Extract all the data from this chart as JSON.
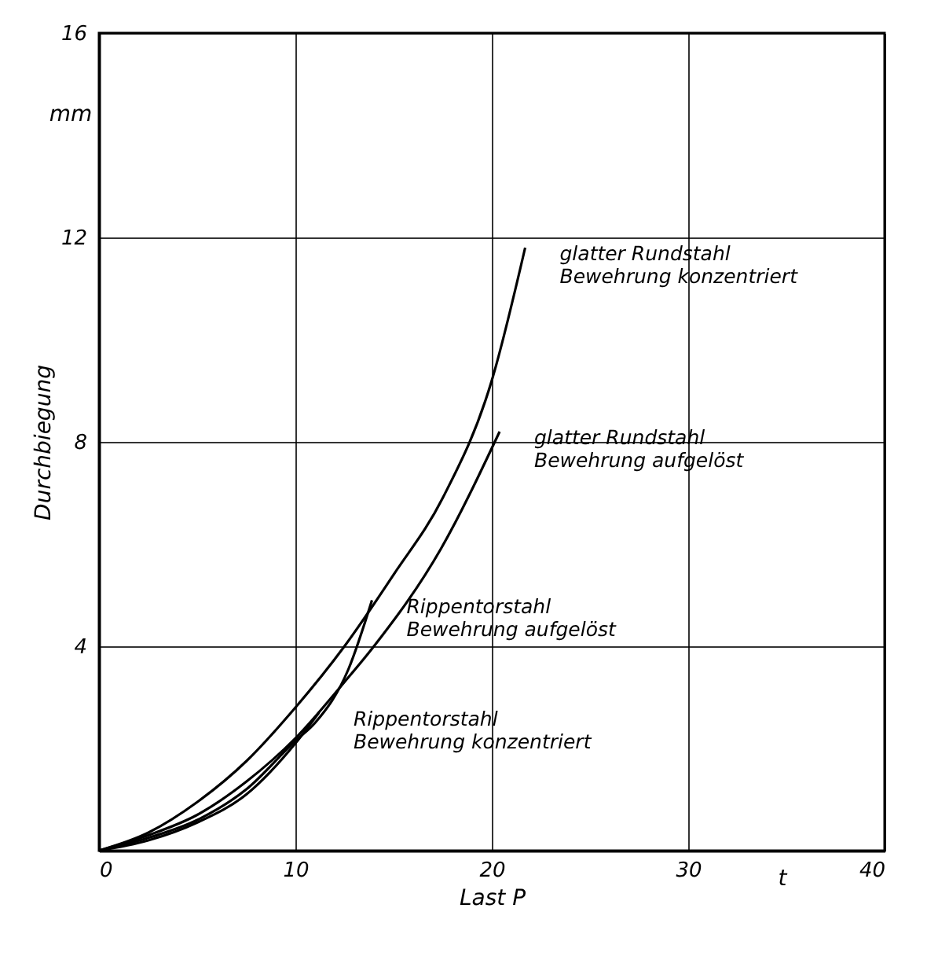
{
  "chart_data": {
    "type": "line",
    "xlabel": "Last P",
    "ylabel": "Durchbiegung",
    "xlim": [
      0,
      40
    ],
    "ylim": [
      0,
      16
    ],
    "xticks": [
      0,
      10,
      20,
      30,
      40
    ],
    "yticks": [
      4,
      8,
      12,
      16
    ],
    "grid": true,
    "legend": false,
    "marker": "none",
    "line_style": "solid",
    "annotations": [
      "mm",
      "t"
    ],
    "series": [
      {
        "name": "glatter Rundstahl\nBewehrung konzentriert",
        "color": "#000000",
        "x": [
          0,
          2.5,
          5,
          7.5,
          10,
          12.5,
          15,
          17.5,
          20,
          21.7
        ],
        "values": [
          0,
          0.35,
          0.95,
          1.75,
          2.8,
          4.0,
          5.4,
          6.9,
          9.2,
          11.8
        ]
      },
      {
        "name": "glatter Rundstahl\nBewehrung aufgelöst",
        "color": "#000000",
        "x": [
          0,
          2.5,
          5,
          7.5,
          10,
          12.5,
          14,
          17.4,
          20.4
        ],
        "values": [
          0,
          0.3,
          0.7,
          1.35,
          2.2,
          3.3,
          4.0,
          5.9,
          8.2
        ]
      },
      {
        "name": "Rippentorstahl\nBewehrung aufgelöst",
        "color": "#000000",
        "x": [
          0,
          2.5,
          5,
          7.5,
          10,
          11,
          12.7,
          13.9
        ],
        "values": [
          0,
          0.25,
          0.6,
          1.2,
          2.15,
          2.5,
          3.55,
          4.9
        ]
      },
      {
        "name": "Rippentorstahl\nBewehrung konzentriert",
        "color": "#000000",
        "x": [
          0,
          2.5,
          5,
          7.5,
          10,
          11.2
        ],
        "values": [
          0,
          0.2,
          0.55,
          1.1,
          2.1,
          2.7
        ]
      }
    ]
  }
}
